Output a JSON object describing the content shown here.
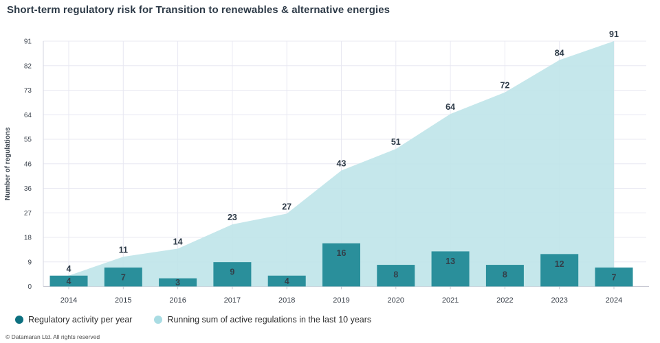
{
  "title": "Short-term regulatory risk for Transition to renewables & alternative energies",
  "footer": "© Datamaran Ltd. All rights reserved",
  "colors": {
    "bar": "#2a8f9b",
    "area": "#bfe4e9",
    "grid": "#e8e8f2",
    "axis": "#c6c7d1",
    "axis_left": "#dadbe4",
    "title_text": "#2d3a47",
    "value_label": "#333f49",
    "tick_label": "#3f4650",
    "x_tick_label": "#333a44"
  },
  "legend": [
    {
      "label": "Regulatory activity per year",
      "color": "#0d7080"
    },
    {
      "label": "Running sum of active regulations in the last 10 years",
      "color": "#a9dce3"
    }
  ],
  "chart_data": {
    "type": "combo",
    "categories": [
      "2014",
      "2015",
      "2016",
      "2017",
      "2018",
      "2019",
      "2020",
      "2021",
      "2022",
      "2023",
      "2024"
    ],
    "series": [
      {
        "name": "Regulatory activity per year",
        "type": "bar",
        "values": [
          4,
          7,
          3,
          9,
          4,
          16,
          8,
          13,
          8,
          12,
          7
        ]
      },
      {
        "name": "Running sum of active regulations in the last 10 years",
        "type": "area",
        "values": [
          4,
          11,
          14,
          23,
          27,
          43,
          51,
          64,
          72,
          84,
          91
        ]
      }
    ],
    "title": "Short-term regulatory risk for Transition to renewables & alternative energies",
    "xlabel": "",
    "ylabel": "Number of regulations",
    "ylim": [
      0,
      91
    ],
    "yticks": [
      0,
      9,
      18,
      27,
      36,
      46,
      55,
      64,
      73,
      82,
      91
    ],
    "grid": true,
    "data_labels": true,
    "legend_position": "bottom-left"
  }
}
